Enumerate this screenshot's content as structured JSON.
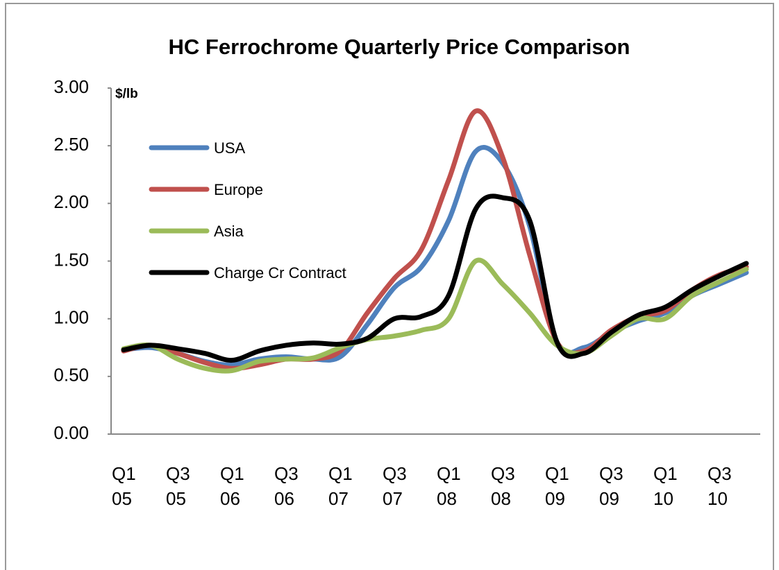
{
  "chart_data": {
    "type": "line",
    "title": "HC Ferrochrome Quarterly Price Comparison",
    "y_label": "$/lb",
    "categories": [
      "Q1 05",
      null,
      "Q3 05",
      null,
      "Q1 06",
      null,
      "Q3 06",
      null,
      "Q1 07",
      null,
      "Q3 07",
      null,
      "Q1 08",
      null,
      "Q3 08",
      null,
      "Q1 09",
      null,
      "Q3 09",
      null,
      "Q1 10",
      null,
      "Q3 10",
      null
    ],
    "series": [
      {
        "name": "USA",
        "color": "#4f81bd",
        "values": [
          0.73,
          0.75,
          0.7,
          0.63,
          0.6,
          0.65,
          0.67,
          0.65,
          0.67,
          0.95,
          1.27,
          1.45,
          1.85,
          2.45,
          2.35,
          1.8,
          0.8,
          0.75,
          0.88,
          0.98,
          1.05,
          1.2,
          1.3,
          1.4
        ]
      },
      {
        "name": "Europe",
        "color": "#c0504d",
        "values": [
          0.72,
          0.77,
          0.7,
          0.62,
          0.57,
          0.6,
          0.65,
          0.65,
          0.72,
          1.05,
          1.35,
          1.6,
          2.2,
          2.8,
          2.4,
          1.55,
          0.8,
          0.72,
          0.9,
          1.02,
          1.07,
          1.25,
          1.38,
          1.45
        ]
      },
      {
        "name": "Asia",
        "color": "#9bbb59",
        "values": [
          0.74,
          0.77,
          0.65,
          0.57,
          0.55,
          0.63,
          0.65,
          0.66,
          0.75,
          0.82,
          0.85,
          0.9,
          1.0,
          1.5,
          1.3,
          1.05,
          0.77,
          0.7,
          0.85,
          1.0,
          1.0,
          1.2,
          1.32,
          1.43
        ]
      },
      {
        "name": "Charge Cr Contract",
        "color": "#000000",
        "values": [
          0.73,
          0.77,
          0.74,
          0.7,
          0.64,
          0.72,
          0.77,
          0.79,
          0.78,
          0.83,
          1.0,
          1.02,
          1.2,
          1.95,
          2.05,
          1.85,
          0.8,
          0.7,
          0.88,
          1.03,
          1.1,
          1.25,
          1.37,
          1.48
        ]
      }
    ],
    "ylim": [
      0,
      3
    ],
    "yticks": [
      {
        "value": 0,
        "label": "0.00"
      },
      {
        "value": 0.5,
        "label": "0.50"
      },
      {
        "value": 1,
        "label": "1.00"
      },
      {
        "value": 1.5,
        "label": "1.50"
      },
      {
        "value": 2,
        "label": "2.00"
      },
      {
        "value": 2.5,
        "label": "2.50"
      },
      {
        "value": 3,
        "label": "3.00"
      }
    ],
    "legend": "upper left",
    "grid": false
  }
}
